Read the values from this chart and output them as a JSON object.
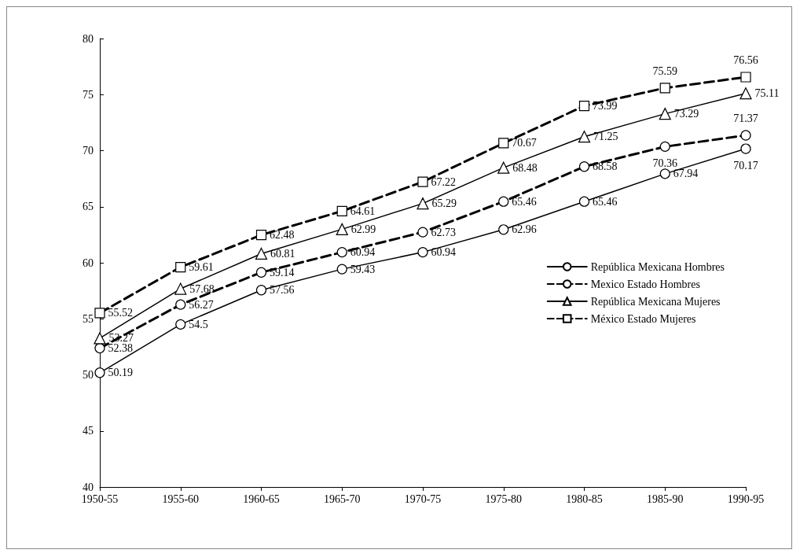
{
  "chart_data": {
    "type": "line",
    "categories": [
      "1950-55",
      "1955-60",
      "1960-65",
      "1965-70",
      "1970-75",
      "1975-80",
      "1980-85",
      "1985-90",
      "1990-95"
    ],
    "series": [
      {
        "name": "República Mexicana Hombres",
        "color": "#000000",
        "marker": "circle",
        "line_style": "solid",
        "values": [
          50.19,
          54.5,
          57.56,
          59.43,
          60.94,
          62.96,
          65.46,
          67.94,
          70.17
        ]
      },
      {
        "name": "Mexico Estado Hombres",
        "color": "#000000",
        "marker": "circle",
        "line_style": "dashed",
        "values": [
          52.38,
          56.27,
          59.14,
          60.94,
          62.73,
          65.46,
          68.58,
          70.36,
          71.37
        ]
      },
      {
        "name": "República Mexicana Mujeres",
        "color": "#000000",
        "marker": "triangle",
        "line_style": "solid",
        "values": [
          53.27,
          57.68,
          60.81,
          62.99,
          65.29,
          68.48,
          71.25,
          73.29,
          75.11
        ]
      },
      {
        "name": "México Estado Mujeres",
        "color": "#000000",
        "marker": "square",
        "line_style": "dashed",
        "values": [
          55.52,
          59.61,
          62.48,
          64.61,
          67.22,
          70.67,
          73.99,
          75.59,
          76.56
        ]
      }
    ],
    "ylim": [
      40,
      80
    ],
    "yticks": [
      40,
      45,
      50,
      55,
      60,
      65,
      70,
      75,
      80
    ],
    "grid": false,
    "legend": "right",
    "data_labels": true
  }
}
